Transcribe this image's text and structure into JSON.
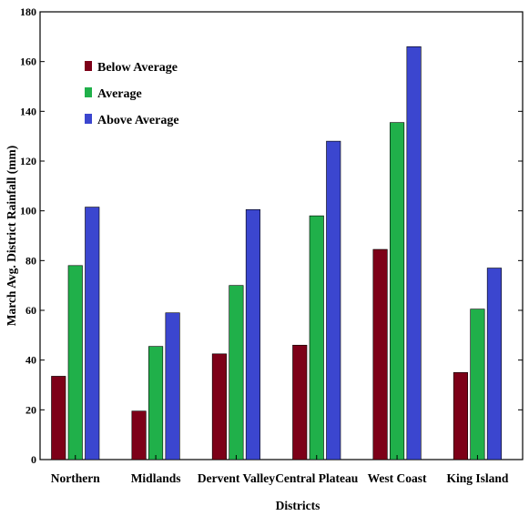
{
  "chart_data": {
    "type": "bar",
    "xlabel": "Districts",
    "ylabel": "March Avg. District Rainfall (mm)",
    "ylim": [
      0,
      180
    ],
    "yticks": [
      0,
      20,
      40,
      60,
      80,
      100,
      120,
      140,
      160,
      180
    ],
    "categories": [
      "Northern",
      "Midlands",
      "Dervent Valley",
      "Central Plateau",
      "West Coast",
      "King Island"
    ],
    "series": [
      {
        "name": "Below Average",
        "color": "#7d0018",
        "values": [
          33.5,
          19.5,
          42.5,
          46,
          84.5,
          35
        ]
      },
      {
        "name": "Average",
        "color": "#20b04a",
        "values": [
          78,
          45.5,
          70,
          98,
          135.5,
          60.5
        ]
      },
      {
        "name": "Above Average",
        "color": "#3b46cf",
        "values": [
          101.5,
          59,
          100.5,
          128,
          166,
          77
        ]
      }
    ],
    "legend_position": "top-left",
    "grid": false
  }
}
